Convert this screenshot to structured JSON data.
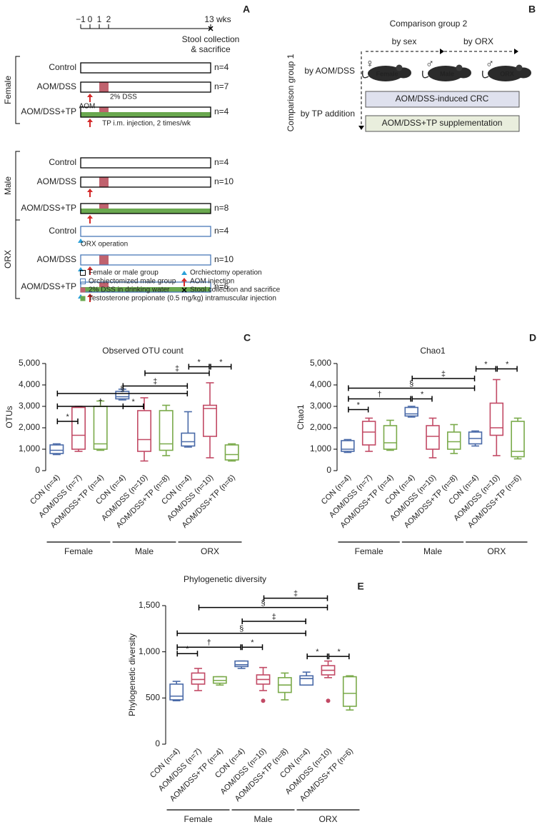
{
  "panel_a": {
    "label": "A",
    "timeline": {
      "xlim": [
        -1,
        13
      ],
      "ticks": [
        {
          "value": -1,
          "label": "−1"
        },
        0,
        1,
        2,
        {
          "value": 13,
          "label": "13 wks"
        }
      ],
      "end_note": [
        "Stool collection",
        "& sacrifice"
      ]
    },
    "dss_weeks": [
      1,
      2
    ],
    "aom_week": 0,
    "groups": [
      {
        "name": "Female",
        "rows": [
          {
            "label": "Control",
            "n": "n=4"
          },
          {
            "label": "AOM/DSS",
            "n": "n=7",
            "treatment": "dss",
            "notes": {
              "aom": "AOM",
              "dss": "2% DSS"
            }
          },
          {
            "label": "AOM/DSS+TP",
            "n": "n=4",
            "treatment": "tp",
            "notes": {
              "tp": "TP i.m. injection, 2 times/wk"
            }
          }
        ]
      },
      {
        "name": "Male",
        "rows": [
          {
            "label": "Control",
            "n": "n=4"
          },
          {
            "label": "AOM/DSS",
            "n": "n=10",
            "treatment": "dss"
          },
          {
            "label": "AOM/DSS+TP",
            "n": "n=8",
            "treatment": "tp"
          }
        ]
      },
      {
        "name": "ORX",
        "orx": true,
        "rows": [
          {
            "label": "Control",
            "n": "n=4",
            "notes": {
              "orx": "ORX operation"
            }
          },
          {
            "label": "AOM/DSS",
            "n": "n=10",
            "treatment": "dss"
          },
          {
            "label": "AOM/DSS+TP",
            "n": "n=6",
            "treatment": "tp"
          }
        ]
      }
    ],
    "legend": [
      {
        "marker": "square-black",
        "text": "Female or male group"
      },
      {
        "marker": "square-blue",
        "text": "Orchiectomized male group"
      },
      {
        "marker": "dss",
        "text": "2% DSS in drinking water"
      },
      {
        "marker": "tp",
        "text": "Testosterone propionate (0.5 mg/kg) intramuscular injection"
      },
      {
        "marker": "triangle",
        "text": "Orchiectomy operation"
      },
      {
        "marker": "arrow",
        "text": "AOM injection"
      },
      {
        "marker": "cross",
        "text": "Stool collection and sacrifice"
      }
    ]
  },
  "panel_b": {
    "label": "B",
    "title": "Comparison group 2",
    "side_title": "Comparison group 1",
    "across": [
      "by sex",
      "by ORX"
    ],
    "down": [
      "by AOM/DSS",
      "by TP addition"
    ],
    "mice": [
      {
        "symbol": "♀",
        "name": "Female",
        "color": "#c0509a"
      },
      {
        "symbol": "♂",
        "name": "Male",
        "color": "#3a7ab8"
      },
      {
        "symbol": "♂",
        "name": "ORX",
        "color": "#3a7ab8"
      }
    ],
    "boxes": [
      "AOM/DSS-induced CRC",
      "AOM/DSS+TP supplementation"
    ]
  },
  "chart_data": [
    {
      "type": "box",
      "panel": "C",
      "title": "Observed OTU count",
      "y_label": "OTUs",
      "categories": [
        "CON (n=4)",
        "AOM/DSS (n=7)",
        "AOM/DSS+TP (n=4)",
        "CON (n=4)",
        "AOM/DSS (n=10)",
        "AOM/DSS+TP (n=8)",
        "CON (n=4)",
        "AOM/DSS (n=10)",
        "AOM/DSS+TP (n=6)"
      ],
      "groups": [
        "Female",
        "Male",
        "ORX"
      ],
      "colors": [
        "#4a6aa8",
        "#c24a65",
        "#7aaa4a",
        "#4a6aa8",
        "#c24a65",
        "#7aaa4a",
        "#4a6aa8",
        "#c24a65",
        "#7aaa4a"
      ],
      "boxes": [
        {
          "min": 750,
          "q1": 800,
          "median": 950,
          "q3": 1200,
          "max": 1250
        },
        {
          "min": 900,
          "q1": 1000,
          "median": 1650,
          "q3": 2950,
          "max": 3000
        },
        {
          "min": 950,
          "q1": 1000,
          "median": 1250,
          "q3": 3000,
          "max": 3250
        },
        {
          "min": 3300,
          "q1": 3350,
          "median": 3450,
          "q3": 3700,
          "max": 3800
        },
        {
          "min": 450,
          "q1": 900,
          "median": 1450,
          "q3": 2800,
          "max": 3400
        },
        {
          "min": 700,
          "q1": 950,
          "median": 1250,
          "q3": 2800,
          "max": 3050
        },
        {
          "min": 1100,
          "q1": 1150,
          "median": 1350,
          "q3": 1750,
          "max": 2750
        },
        {
          "min": 600,
          "q1": 1600,
          "median": 2900,
          "q3": 3050,
          "max": 4100
        },
        {
          "min": 450,
          "q1": 500,
          "median": 750,
          "q3": 1200,
          "max": 1250
        }
      ],
      "brackets": [
        {
          "between": [
            0,
            1
          ],
          "y": 2300,
          "label": "*"
        },
        {
          "between": [
            0,
            4
          ],
          "y": 3000,
          "label": "†"
        },
        {
          "between": [
            3,
            4
          ],
          "y": 3000,
          "label": "*"
        },
        {
          "between": [
            0,
            6
          ],
          "y": 3600,
          "label": "§"
        },
        {
          "between": [
            3,
            6
          ],
          "y": 3950,
          "label": "‡"
        },
        {
          "between": [
            4,
            7
          ],
          "y": 4550,
          "label": "‡"
        },
        {
          "between": [
            6,
            7
          ],
          "y": 4850,
          "label": "*"
        },
        {
          "between": [
            7,
            8
          ],
          "y": 4850,
          "label": "*"
        }
      ],
      "ylim": [
        0,
        5000
      ],
      "yticks": [
        0,
        {
          "value": 1000,
          "label": "1,000"
        },
        {
          "value": 2000,
          "label": "2,000"
        },
        {
          "value": 3000,
          "label": "3,000"
        },
        {
          "value": 4000,
          "label": "4,000"
        },
        {
          "value": 5000,
          "label": "5,000"
        }
      ]
    },
    {
      "type": "box",
      "panel": "D",
      "title": "Chao1",
      "y_label": "Chao1",
      "categories": [
        "CON (n=4)",
        "AOM/DSS (n=7)",
        "AOM/DSS+TP (n=4)",
        "CON (n=4)",
        "AOM/DSS (n=10)",
        "AOM/DSS+TP (n=8)",
        "CON (n=4)",
        "AOM/DSS (n=10)",
        "AOM/DSS+TP (n=6)"
      ],
      "groups": [
        "Female",
        "Male",
        "ORX"
      ],
      "colors": [
        "#4a6aa8",
        "#c24a65",
        "#7aaa4a",
        "#4a6aa8",
        "#c24a65",
        "#7aaa4a",
        "#4a6aa8",
        "#c24a65",
        "#7aaa4a"
      ],
      "boxes": [
        {
          "min": 850,
          "q1": 900,
          "median": 1000,
          "q3": 1400,
          "max": 1450
        },
        {
          "min": 900,
          "q1": 1200,
          "median": 1800,
          "q3": 2300,
          "max": 2450
        },
        {
          "min": 950,
          "q1": 1000,
          "median": 1300,
          "q3": 2100,
          "max": 2350
        },
        {
          "min": 2500,
          "q1": 2550,
          "median": 2650,
          "q3": 2950,
          "max": 3000
        },
        {
          "min": 600,
          "q1": 1000,
          "median": 1600,
          "q3": 2100,
          "max": 2450
        },
        {
          "min": 800,
          "q1": 1000,
          "median": 1350,
          "q3": 1800,
          "max": 2150
        },
        {
          "min": 1150,
          "q1": 1250,
          "median": 1500,
          "q3": 1800,
          "max": 1850
        },
        {
          "min": 700,
          "q1": 1650,
          "median": 2000,
          "q3": 3150,
          "max": 4250
        },
        {
          "min": 550,
          "q1": 650,
          "median": 900,
          "q3": 2300,
          "max": 2450
        }
      ],
      "brackets": [
        {
          "between": [
            0,
            1
          ],
          "y": 2850,
          "label": "*"
        },
        {
          "between": [
            0,
            3
          ],
          "y": 3350,
          "label": "†"
        },
        {
          "between": [
            3,
            4
          ],
          "y": 3350,
          "label": "*"
        },
        {
          "between": [
            0,
            6
          ],
          "y": 3850,
          "label": "§"
        },
        {
          "between": [
            3,
            6
          ],
          "y": 4300,
          "label": "‡"
        },
        {
          "between": [
            6,
            7
          ],
          "y": 4750,
          "label": "*"
        },
        {
          "between": [
            7,
            8
          ],
          "y": 4750,
          "label": "*"
        }
      ],
      "ylim": [
        0,
        5000
      ],
      "yticks": [
        0,
        {
          "value": 1000,
          "label": "1,000"
        },
        {
          "value": 2000,
          "label": "2,000"
        },
        {
          "value": 3000,
          "label": "3,000"
        },
        {
          "value": 4000,
          "label": "4,000"
        },
        {
          "value": 5000,
          "label": "5,000"
        }
      ]
    },
    {
      "type": "box",
      "panel": "E",
      "title": "Phylogenetic diversity",
      "y_label": "Phylogenetic diversity",
      "categories": [
        "CON (n=4)",
        "AOM/DSS (n=7)",
        "AOM/DSS+TP (n=4)",
        "CON (n=4)",
        "AOM/DSS (n=10)",
        "AOM/DSS+TP (n=8)",
        "CON (n=4)",
        "AOM/DSS (n=10)",
        "AOM/DSS+TP (n=6)"
      ],
      "groups": [
        "Female",
        "Male",
        "ORX"
      ],
      "colors": [
        "#4a6aa8",
        "#c24a65",
        "#7aaa4a",
        "#4a6aa8",
        "#c24a65",
        "#7aaa4a",
        "#4a6aa8",
        "#c24a65",
        "#7aaa4a"
      ],
      "boxes": [
        {
          "min": 470,
          "q1": 480,
          "median": 520,
          "q3": 650,
          "max": 680
        },
        {
          "min": 580,
          "q1": 650,
          "median": 700,
          "q3": 770,
          "max": 820
        },
        {
          "min": 640,
          "q1": 660,
          "median": 690,
          "q3": 730,
          "max": 730
        },
        {
          "min": 820,
          "q1": 840,
          "median": 860,
          "q3": 900,
          "max": 900
        },
        {
          "min": 580,
          "q1": 650,
          "median": 700,
          "q3": 750,
          "max": 830,
          "outliers": [
            470
          ]
        },
        {
          "min": 480,
          "q1": 560,
          "median": 640,
          "q3": 720,
          "max": 770
        },
        {
          "min": 640,
          "q1": 640,
          "median": 710,
          "q3": 740,
          "max": 780
        },
        {
          "min": 720,
          "q1": 750,
          "median": 800,
          "q3": 850,
          "max": 900,
          "outliers": [
            470
          ]
        },
        {
          "min": 370,
          "q1": 410,
          "median": 550,
          "q3": 730,
          "max": 740
        }
      ],
      "brackets": [
        {
          "between": [
            0,
            1
          ],
          "y": 980,
          "label": "*"
        },
        {
          "between": [
            0,
            3
          ],
          "y": 1050,
          "label": "†"
        },
        {
          "between": [
            3,
            4
          ],
          "y": 1050,
          "label": "*"
        },
        {
          "between": [
            0,
            6
          ],
          "y": 1200,
          "label": "§"
        },
        {
          "between": [
            3,
            6
          ],
          "y": 1330,
          "label": "‡"
        },
        {
          "between": [
            1,
            7
          ],
          "y": 1480,
          "label": "§"
        },
        {
          "between": [
            4,
            7
          ],
          "y": 1580,
          "label": "‡"
        },
        {
          "between": [
            6,
            7
          ],
          "y": 950,
          "label": "*"
        },
        {
          "between": [
            7,
            8
          ],
          "y": 950,
          "label": "*"
        }
      ],
      "ylim": [
        0,
        1500
      ],
      "yticks": [
        0,
        500,
        {
          "value": 1000,
          "label": "1,000"
        },
        {
          "value": 1500,
          "label": "1,500"
        }
      ]
    }
  ]
}
